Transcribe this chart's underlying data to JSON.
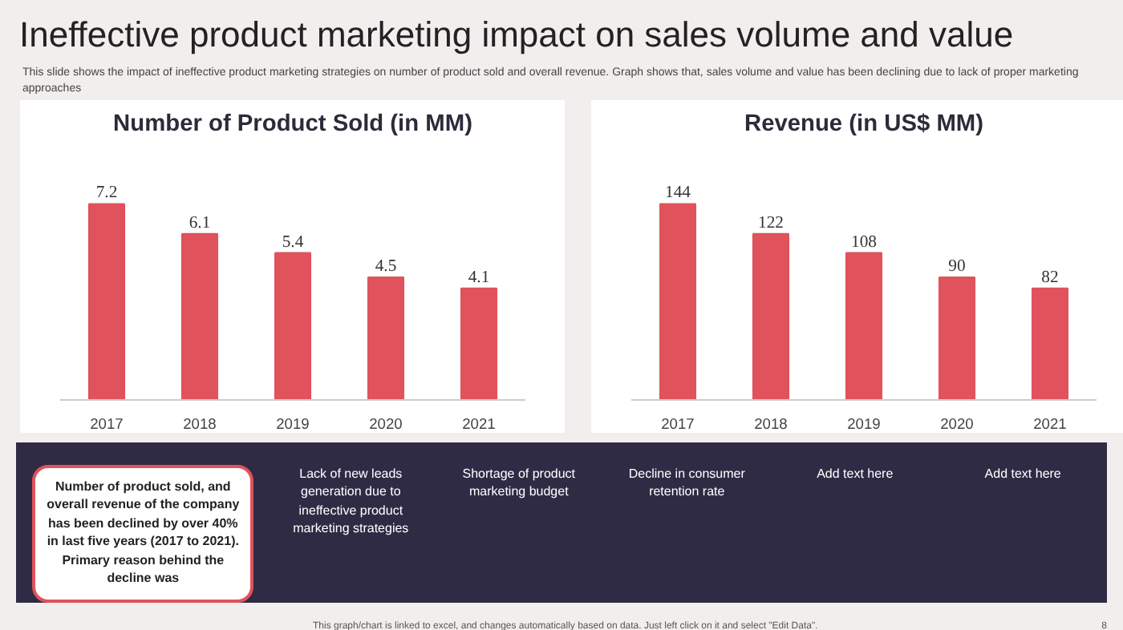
{
  "chart_data": [
    {
      "type": "other",
      "title": "Ineffective product marketing impact on sales volume and value",
      "subtitle": "This slide shows the impact of ineffective product marketing strategies on number of product sold and overall revenue. Graph shows that, sales volume and value has been declining due to lack of proper marketing approaches"
    },
    {
      "type": "bar",
      "title": "Number of Product Sold (in MM)",
      "categories": [
        "2017",
        "2018",
        "2019",
        "2020",
        "2021"
      ],
      "values": [
        7.2,
        6.1,
        5.4,
        4.5,
        4.1
      ],
      "color": "#e0525c",
      "data_labels": true
    },
    {
      "type": "bar",
      "title": "Revenue (in US$ MM)",
      "categories": [
        "2017",
        "2018",
        "2019",
        "2020",
        "2021"
      ],
      "values": [
        144,
        122,
        108,
        90,
        82
      ],
      "color": "#e0525c",
      "data_labels": true
    },
    {
      "type": "other",
      "annotations": [
        "Number of product sold, and overall revenue of the company has been declined by over 40% in last five years (2017 to 2021). Primary reason behind the decline was",
        "Lack of new leads generation due to ineffective product marketing strategies",
        "Shortage of product marketing budget",
        "Decline in consumer retention rate",
        "Add text here",
        "Add text here"
      ]
    },
    {
      "type": "other",
      "annotations": [
        "This graph/chart is linked to excel, and changes automatically based on data. Just left click on it and select \"Edit Data\".",
        "8"
      ]
    }
  ]
}
